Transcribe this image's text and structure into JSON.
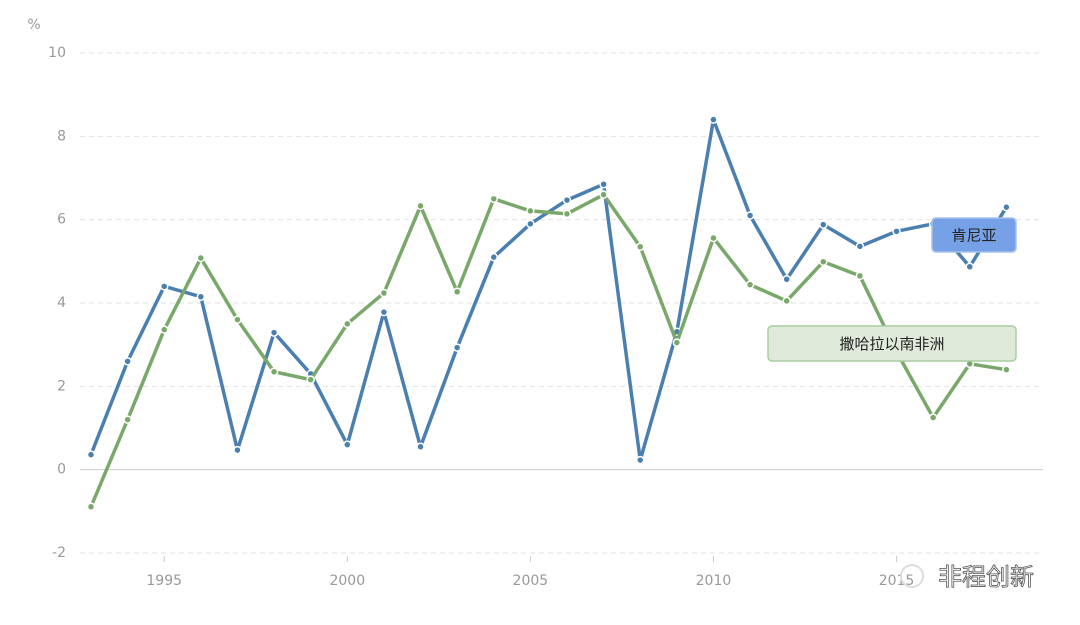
{
  "chart_data": {
    "type": "line",
    "y_label": "%",
    "x": [
      1993,
      1994,
      1995,
      1996,
      1997,
      1998,
      1999,
      2000,
      2001,
      2002,
      2003,
      2004,
      2005,
      2006,
      2007,
      2008,
      2009,
      2010,
      2011,
      2012,
      2013,
      2014,
      2015,
      2016,
      2017,
      2018
    ],
    "series": [
      {
        "name": "肯尼亚",
        "color": "#4a7fb0",
        "values": [
          0.36,
          2.6,
          4.4,
          4.15,
          0.47,
          3.29,
          2.3,
          0.6,
          3.78,
          0.55,
          2.93,
          5.1,
          5.9,
          6.47,
          6.85,
          0.23,
          3.31,
          8.4,
          6.1,
          4.57,
          5.88,
          5.36,
          5.72,
          5.9,
          4.87,
          6.3
        ]
      },
      {
        "name": "撒哈拉以南非洲",
        "color": "#79a86a",
        "values": [
          -0.89,
          1.2,
          3.36,
          5.08,
          3.6,
          2.35,
          2.16,
          3.5,
          4.24,
          6.33,
          4.27,
          6.5,
          6.21,
          6.14,
          6.6,
          5.35,
          3.05,
          5.56,
          4.44,
          4.05,
          4.99,
          4.65,
          2.83,
          1.25,
          2.54,
          2.4
        ]
      }
    ],
    "xlim": [
      1992.7,
      2019
    ],
    "xticks": [
      1995,
      2000,
      2005,
      2010,
      2015
    ],
    "ylim": [
      -2,
      10
    ],
    "yticks": [
      -2,
      0,
      2,
      4,
      6,
      8,
      10
    ],
    "grid": true
  },
  "watermark": "非程创新"
}
